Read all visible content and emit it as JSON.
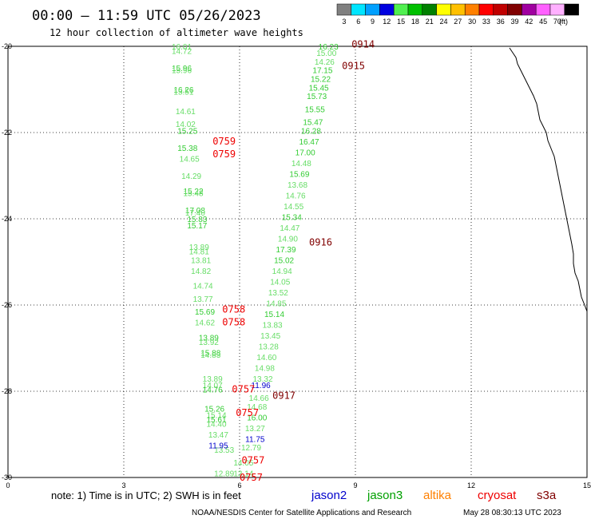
{
  "header": {
    "title": "00:00 – 11:59 UTC 05/26/2023",
    "subtitle": "12 hour collection of altimeter wave heights"
  },
  "color_scale": {
    "unit": "(ft)",
    "bins": [
      {
        "label": "3",
        "color": "#808080"
      },
      {
        "label": "6",
        "color": "#00e5ff"
      },
      {
        "label": "9",
        "color": "#00a0ff"
      },
      {
        "label": "12",
        "color": "#0000e0"
      },
      {
        "label": "15",
        "color": "#50f050"
      },
      {
        "label": "18",
        "color": "#00c000"
      },
      {
        "label": "21",
        "color": "#008000"
      },
      {
        "label": "24",
        "color": "#ffff00"
      },
      {
        "label": "27",
        "color": "#ffc000"
      },
      {
        "label": "30",
        "color": "#ff8000"
      },
      {
        "label": "33",
        "color": "#ff0000"
      },
      {
        "label": "36",
        "color": "#c00000"
      },
      {
        "label": "39",
        "color": "#800000"
      },
      {
        "label": "42",
        "color": "#a000a0"
      },
      {
        "label": "45",
        "color": "#ff60ff"
      },
      {
        "label": "70",
        "color": "#ffb0ff"
      },
      {
        "label": "",
        "color": "#000000"
      }
    ]
  },
  "chart_data": {
    "type": "scatter",
    "title": "00:00 – 11:59 UTC 05/26/2023",
    "subtitle": "12 hour collection of altimeter wave heights",
    "xlim": [
      0,
      15
    ],
    "ylim": [
      -30,
      -20
    ],
    "x_ticks": [
      "0",
      "3",
      "6",
      "9",
      "12",
      "15"
    ],
    "y_ticks": [
      "-20",
      "-22",
      "-24",
      "-26",
      "-28",
      "-30"
    ],
    "grid": true,
    "point_colors": {
      "green": "#33cc33",
      "lightgreen": "#66dd66",
      "blue": "#0000cc",
      "red": "#ee0000",
      "darkred": "#800000"
    },
    "series": [
      {
        "name": "jason3",
        "color": "#00a000",
        "points": [
          {
            "x": 4.5,
            "y": -20.0,
            "v": "16.01",
            "c": "lightgreen"
          },
          {
            "x": 4.5,
            "y": -20.1,
            "v": "14.72",
            "c": "lightgreen"
          },
          {
            "x": 4.5,
            "y": -20.5,
            "v": "15.96",
            "c": "green"
          },
          {
            "x": 4.5,
            "y": -20.55,
            "v": "15.96",
            "c": "lightgreen"
          },
          {
            "x": 4.55,
            "y": -21.0,
            "v": "16.26",
            "c": "green"
          },
          {
            "x": 4.55,
            "y": -21.05,
            "v": "15.51",
            "c": "lightgreen"
          },
          {
            "x": 4.6,
            "y": -21.5,
            "v": "14.61",
            "c": "lightgreen"
          },
          {
            "x": 4.6,
            "y": -21.8,
            "v": "14.02",
            "c": "lightgreen"
          },
          {
            "x": 4.65,
            "y": -21.95,
            "v": "15.25",
            "c": "green"
          },
          {
            "x": 4.65,
            "y": -22.35,
            "v": "15.38",
            "c": "green"
          },
          {
            "x": 4.7,
            "y": -22.6,
            "v": "14.65",
            "c": "lightgreen"
          },
          {
            "x": 4.75,
            "y": -23.0,
            "v": "14.29",
            "c": "lightgreen"
          },
          {
            "x": 4.8,
            "y": -23.35,
            "v": "15.22",
            "c": "green"
          },
          {
            "x": 4.8,
            "y": -23.4,
            "v": "15.48",
            "c": "lightgreen"
          },
          {
            "x": 4.85,
            "y": -23.8,
            "v": "17.08",
            "c": "green"
          },
          {
            "x": 4.85,
            "y": -23.85,
            "v": "17.40",
            "c": "lightgreen"
          },
          {
            "x": 4.9,
            "y": -24.0,
            "v": "15.83",
            "c": "green"
          },
          {
            "x": 4.9,
            "y": -24.15,
            "v": "15.17",
            "c": "green"
          },
          {
            "x": 4.95,
            "y": -24.65,
            "v": "13.89",
            "c": "lightgreen"
          },
          {
            "x": 4.95,
            "y": -24.75,
            "v": "14.81",
            "c": "lightgreen"
          },
          {
            "x": 5.0,
            "y": -24.95,
            "v": "13.81",
            "c": "lightgreen"
          },
          {
            "x": 5.0,
            "y": -25.2,
            "v": "14.82",
            "c": "lightgreen"
          },
          {
            "x": 5.05,
            "y": -25.55,
            "v": "14.74",
            "c": "lightgreen"
          },
          {
            "x": 5.05,
            "y": -25.85,
            "v": "13.77",
            "c": "lightgreen"
          },
          {
            "x": 5.1,
            "y": -26.15,
            "v": "15.69",
            "c": "green"
          },
          {
            "x": 5.1,
            "y": -26.4,
            "v": "14.62",
            "c": "lightgreen"
          },
          {
            "x": 5.2,
            "y": -26.75,
            "v": "13.89",
            "c": "green"
          },
          {
            "x": 5.2,
            "y": -26.85,
            "v": "13.92",
            "c": "lightgreen"
          },
          {
            "x": 5.25,
            "y": -27.1,
            "v": "15.88",
            "c": "green"
          },
          {
            "x": 5.25,
            "y": -27.15,
            "v": "14.83",
            "c": "lightgreen"
          },
          {
            "x": 5.3,
            "y": -27.7,
            "v": "13.89",
            "c": "lightgreen"
          },
          {
            "x": 5.3,
            "y": -27.85,
            "v": "14.07",
            "c": "lightgreen"
          },
          {
            "x": 5.3,
            "y": -27.95,
            "v": "14.76",
            "c": "green"
          },
          {
            "x": 5.35,
            "y": -28.4,
            "v": "15.26",
            "c": "green"
          },
          {
            "x": 5.4,
            "y": -28.55,
            "v": "15.14",
            "c": "lightgreen"
          },
          {
            "x": 5.4,
            "y": -28.65,
            "v": "15.61",
            "c": "green"
          },
          {
            "x": 5.4,
            "y": -28.75,
            "v": "14.40",
            "c": "lightgreen"
          },
          {
            "x": 5.45,
            "y": -29.0,
            "v": "13.47",
            "c": "lightgreen"
          },
          {
            "x": 5.6,
            "y": -29.35,
            "v": "13.53",
            "c": "lightgreen"
          },
          {
            "x": 5.6,
            "y": -29.9,
            "v": "12.89",
            "c": "lightgreen"
          },
          {
            "x": 8.3,
            "y": -20.0,
            "v": "16.23",
            "c": "green"
          },
          {
            "x": 8.25,
            "y": -20.15,
            "v": "15.00",
            "c": "lightgreen"
          },
          {
            "x": 8.2,
            "y": -20.35,
            "v": "14.26",
            "c": "lightgreen"
          },
          {
            "x": 8.15,
            "y": -20.55,
            "v": "17.15",
            "c": "green"
          },
          {
            "x": 8.1,
            "y": -20.75,
            "v": "15.22",
            "c": "green"
          },
          {
            "x": 8.05,
            "y": -20.95,
            "v": "15.45",
            "c": "green"
          },
          {
            "x": 8.0,
            "y": -21.15,
            "v": "15.73",
            "c": "green"
          },
          {
            "x": 7.95,
            "y": -21.45,
            "v": "15.55",
            "c": "green"
          },
          {
            "x": 7.9,
            "y": -21.75,
            "v": "15.47",
            "c": "green"
          },
          {
            "x": 7.85,
            "y": -21.95,
            "v": "16.28",
            "c": "green"
          },
          {
            "x": 7.8,
            "y": -22.2,
            "v": "16.47",
            "c": "green"
          },
          {
            "x": 7.7,
            "y": -22.45,
            "v": "17.00",
            "c": "green"
          },
          {
            "x": 7.6,
            "y": -22.7,
            "v": "14.48",
            "c": "lightgreen"
          },
          {
            "x": 7.55,
            "y": -22.95,
            "v": "15.69",
            "c": "green"
          },
          {
            "x": 7.5,
            "y": -23.2,
            "v": "13.68",
            "c": "lightgreen"
          },
          {
            "x": 7.45,
            "y": -23.45,
            "v": "14.76",
            "c": "lightgreen"
          },
          {
            "x": 7.4,
            "y": -23.7,
            "v": "14.55",
            "c": "lightgreen"
          },
          {
            "x": 7.35,
            "y": -23.95,
            "v": "15.34",
            "c": "green"
          },
          {
            "x": 7.3,
            "y": -24.2,
            "v": "14.47",
            "c": "lightgreen"
          },
          {
            "x": 7.25,
            "y": -24.45,
            "v": "14.90",
            "c": "lightgreen"
          },
          {
            "x": 7.2,
            "y": -24.7,
            "v": "17.39",
            "c": "green"
          },
          {
            "x": 7.15,
            "y": -24.95,
            "v": "15.02",
            "c": "green"
          },
          {
            "x": 7.1,
            "y": -25.2,
            "v": "14.94",
            "c": "lightgreen"
          },
          {
            "x": 7.05,
            "y": -25.45,
            "v": "14.05",
            "c": "lightgreen"
          },
          {
            "x": 7.0,
            "y": -25.7,
            "v": "13.52",
            "c": "lightgreen"
          },
          {
            "x": 6.95,
            "y": -25.95,
            "v": "14.85",
            "c": "lightgreen"
          },
          {
            "x": 6.9,
            "y": -26.2,
            "v": "15.14",
            "c": "green"
          },
          {
            "x": 6.85,
            "y": -26.45,
            "v": "13.83",
            "c": "lightgreen"
          },
          {
            "x": 6.8,
            "y": -26.7,
            "v": "13.45",
            "c": "lightgreen"
          },
          {
            "x": 6.75,
            "y": -26.95,
            "v": "13.28",
            "c": "lightgreen"
          },
          {
            "x": 6.7,
            "y": -27.2,
            "v": "14.60",
            "c": "lightgreen"
          },
          {
            "x": 6.65,
            "y": -27.45,
            "v": "14.98",
            "c": "lightgreen"
          },
          {
            "x": 6.6,
            "y": -27.7,
            "v": "13.32",
            "c": "lightgreen"
          },
          {
            "x": 6.5,
            "y": -28.15,
            "v": "14.66",
            "c": "lightgreen"
          },
          {
            "x": 6.45,
            "y": -28.35,
            "v": "14.68",
            "c": "lightgreen"
          },
          {
            "x": 6.45,
            "y": -28.6,
            "v": "16.00",
            "c": "green"
          },
          {
            "x": 6.4,
            "y": -28.85,
            "v": "13.27",
            "c": "lightgreen"
          },
          {
            "x": 6.3,
            "y": -29.3,
            "v": "12.79",
            "c": "lightgreen"
          },
          {
            "x": 6.1,
            "y": -29.65,
            "v": "14.05",
            "c": "lightgreen"
          },
          {
            "x": 6.1,
            "y": -29.9,
            "v": "13.14",
            "c": "lightgreen"
          }
        ]
      },
      {
        "name": "jason2",
        "color": "#0000cc",
        "points": [
          {
            "x": 6.55,
            "y": -27.85,
            "v": "11.96",
            "c": "blue"
          },
          {
            "x": 6.4,
            "y": -29.1,
            "v": "11.75",
            "c": "blue"
          },
          {
            "x": 5.45,
            "y": -29.25,
            "v": "11.95",
            "c": "blue"
          }
        ]
      },
      {
        "name": "passes",
        "points": [
          {
            "x": 9.2,
            "y": -19.95,
            "v": "0914",
            "c": "darkred"
          },
          {
            "x": 8.95,
            "y": -20.45,
            "v": "0915",
            "c": "darkred"
          },
          {
            "x": 5.6,
            "y": -22.2,
            "v": "0759",
            "c": "red"
          },
          {
            "x": 5.6,
            "y": -22.5,
            "v": "0759",
            "c": "red"
          },
          {
            "x": 8.1,
            "y": -24.55,
            "v": "0916",
            "c": "darkred"
          },
          {
            "x": 5.85,
            "y": -26.1,
            "v": "0758",
            "c": "red"
          },
          {
            "x": 5.85,
            "y": -26.4,
            "v": "0758",
            "c": "red"
          },
          {
            "x": 6.1,
            "y": -27.95,
            "v": "0757",
            "c": "red"
          },
          {
            "x": 7.15,
            "y": -28.1,
            "v": "0917",
            "c": "darkred"
          },
          {
            "x": 6.2,
            "y": -28.5,
            "v": "0757",
            "c": "red"
          },
          {
            "x": 6.35,
            "y": -29.6,
            "v": "0757",
            "c": "red"
          },
          {
            "x": 6.3,
            "y": -30.0,
            "v": "0757",
            "c": "red"
          }
        ]
      }
    ]
  },
  "legend": {
    "note": "note: 1) Time is in UTC; 2) SWH is in feet",
    "satellites": [
      {
        "name": "jason2",
        "color": "#0000cc"
      },
      {
        "name": "jason3",
        "color": "#00a000"
      },
      {
        "name": "altika",
        "color": "#ff8000"
      },
      {
        "name": "cryosat",
        "color": "#ee0000"
      },
      {
        "name": "s3a",
        "color": "#800000"
      }
    ]
  },
  "footer": {
    "agency": "NOAA/NESDIS Center for Satellite Applications and Research",
    "timestamp": "May 28 08:30:13 UTC 2023"
  }
}
